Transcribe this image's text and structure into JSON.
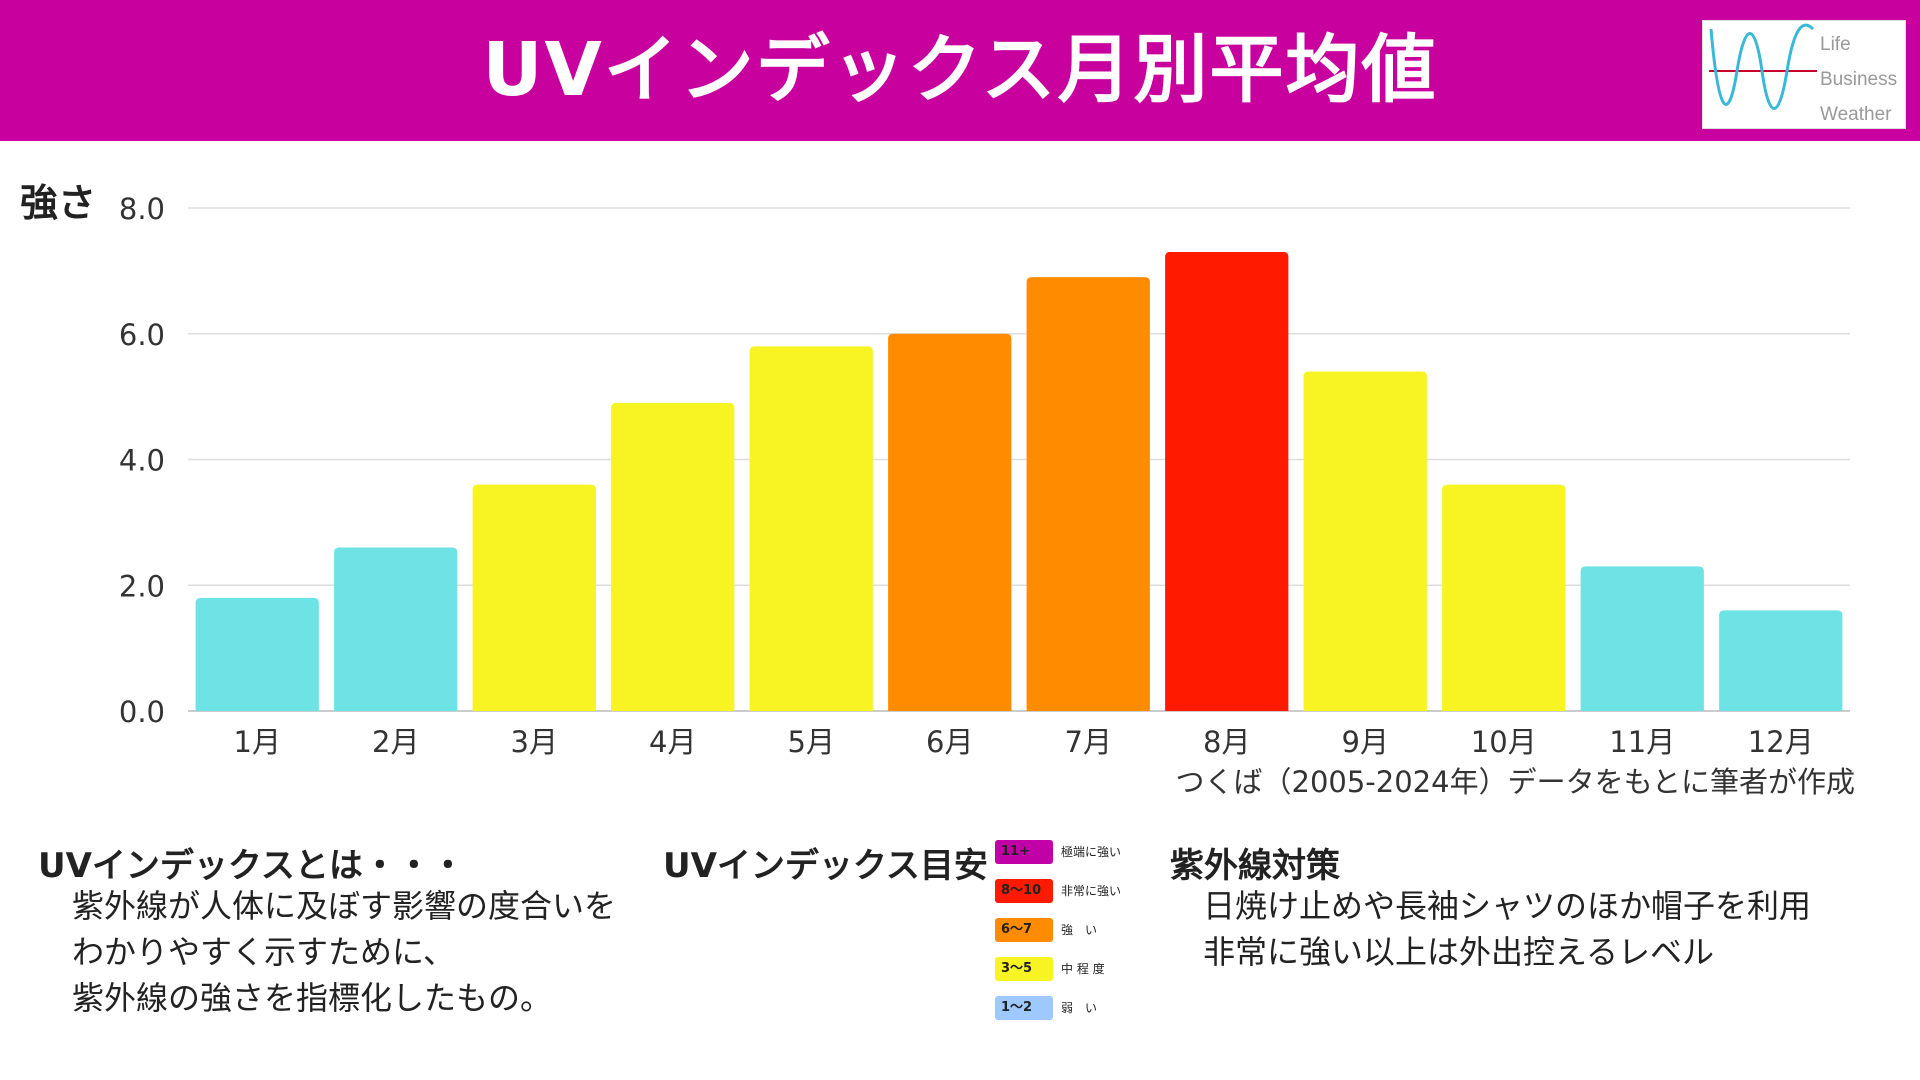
{
  "header": {
    "title": "UVインデックス月別平均値"
  },
  "logo": {
    "lines": [
      "Life",
      "Business",
      "Weather"
    ]
  },
  "chart_data": {
    "type": "bar",
    "title": "UVインデックス月別平均値",
    "ylabel": "強さ",
    "xlabel": "",
    "ylim": [
      0,
      8
    ],
    "yticks": [
      "0.0",
      "2.0",
      "4.0",
      "6.0",
      "8.0"
    ],
    "grid": true,
    "categories": [
      "1月",
      "2月",
      "3月",
      "4月",
      "5月",
      "6月",
      "7月",
      "8月",
      "9月",
      "10月",
      "11月",
      "12月"
    ],
    "values": [
      1.8,
      2.6,
      3.6,
      4.9,
      5.8,
      6.0,
      6.9,
      7.3,
      5.4,
      3.6,
      2.3,
      1.6
    ],
    "bar_colors": [
      "#6ee3e6",
      "#6ee3e6",
      "#f8f323",
      "#f8f323",
      "#f8f323",
      "#ff8c00",
      "#ff8c00",
      "#ff1a00",
      "#f8f323",
      "#f8f323",
      "#6ee3e6",
      "#6ee3e6"
    ],
    "source_note": "つくば（2005-2024年）データをもとに筆者が作成"
  },
  "about": {
    "title": "UVインデックスとは・・・",
    "lines": [
      "紫外線が人体に及ぼす影響の度合いを",
      "わかりやすく示すために、",
      "紫外線の強さを指標化したもの。"
    ]
  },
  "guide": {
    "title": "UVインデックス目安",
    "items": [
      {
        "range": "11+",
        "label": "極端に強い",
        "color": "#c200a8"
      },
      {
        "range": "8～10",
        "label": "非常に強い",
        "color": "#ff1a00"
      },
      {
        "range": "6～7",
        "label": "強　い",
        "color": "#ff8c00"
      },
      {
        "range": "3～5",
        "label": "中 程 度",
        "color": "#f8f323"
      },
      {
        "range": "1～2",
        "label": "弱　い",
        "color": "#9ec9ff"
      }
    ]
  },
  "measures": {
    "title": "紫外線対策",
    "lines": [
      "日焼け止めや長袖シャツのほか帽子を利用",
      "非常に強い以上は外出控えるレベル"
    ]
  }
}
